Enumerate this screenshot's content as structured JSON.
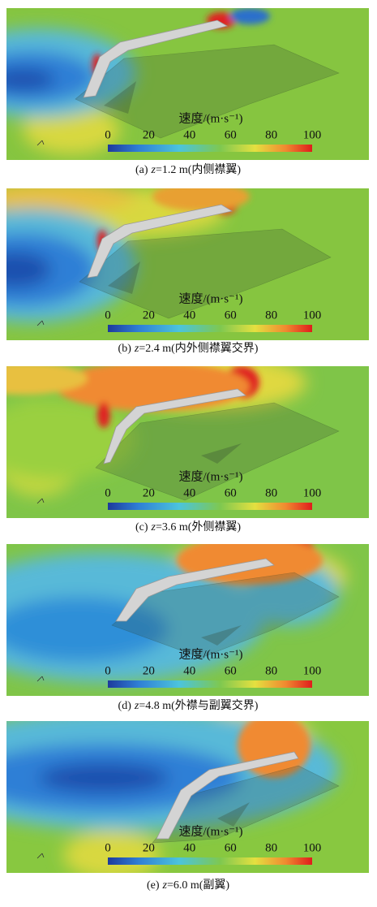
{
  "figure": {
    "colorbar": {
      "label": "速度/(m·s⁻¹)",
      "lim": [
        0,
        100
      ],
      "ticks": [
        0,
        20,
        40,
        60,
        80,
        100
      ]
    },
    "panels": [
      {
        "label": "(a)",
        "variable": "z",
        "condition": "=1.2 m(内侧襟翼)"
      },
      {
        "label": "(b)",
        "variable": "z",
        "condition": "=2.4 m(内外侧襟翼交界)"
      },
      {
        "label": "(c)",
        "variable": "z",
        "condition": "=3.6 m(外侧襟翼)"
      },
      {
        "label": "(d)",
        "variable": "z",
        "condition": "=4.8 m(外襟与副翼交界)"
      },
      {
        "label": "(e)",
        "variable": "z",
        "condition": "=6.0 m(副翼)"
      }
    ]
  }
}
